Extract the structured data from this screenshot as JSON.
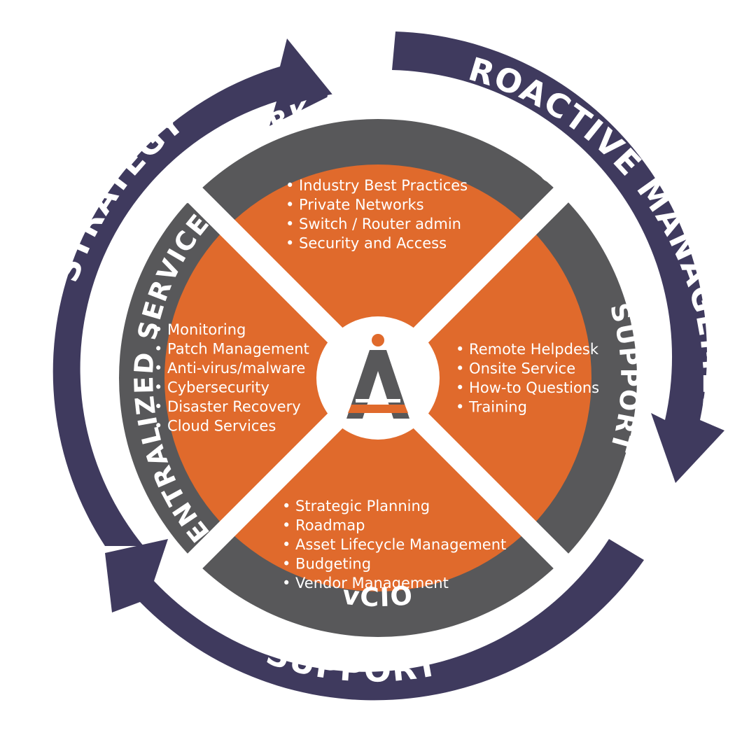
{
  "colors": {
    "outer_ring": "#3f3a5e",
    "inner_ring": "#58585a",
    "quadrant_fill": "#e06a2c",
    "divider": "#ffffff",
    "logo_dark": "#58585a",
    "logo_accent": "#e06a2c"
  },
  "outer_cycle": {
    "strategy": "STRATEGY",
    "proactive_management": "PROACTIVE MANAGEMENT",
    "support": "SUPPORT"
  },
  "ring_labels": {
    "top": "NETWORK ADMINISTRATION",
    "right": "SUPPORT",
    "bottom": "vCIO",
    "left": "CENTRALIZED SERVICES"
  },
  "quadrants": {
    "top": [
      "Industry Best Practices",
      "Private Networks",
      "Switch / Router admin",
      "Security and Access"
    ],
    "right": [
      "Remote Helpdesk",
      "Onsite Service",
      "How-to Questions",
      "Training"
    ],
    "bottom": [
      "Strategic Planning",
      "Roadmap",
      "Asset Lifecycle Management",
      "Budgeting",
      "Vendor Management"
    ],
    "left": [
      "Monitoring",
      "Patch Management",
      "Anti-virus/malware",
      "Cybersecurity",
      "Disaster Recovery",
      "Cloud Services"
    ]
  },
  "center_logo": {
    "icon": "a-letter-logo-icon"
  }
}
